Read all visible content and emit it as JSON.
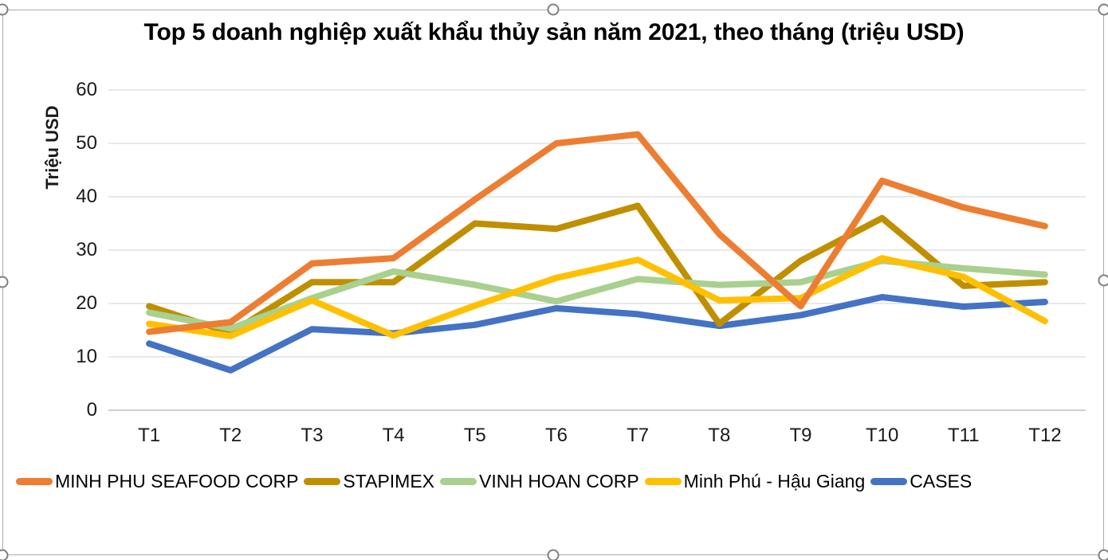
{
  "chart_data": {
    "type": "line",
    "title": "Top 5 doanh nghiệp xuất khẩu thủy sản năm 2021, theo tháng (triệu USD)",
    "ylabel": "Triệu USD",
    "xlabel": "",
    "categories": [
      "T1",
      "T2",
      "T3",
      "T4",
      "T5",
      "T6",
      "T7",
      "T8",
      "T9",
      "T10",
      "T11",
      "T12"
    ],
    "yticks": [
      0,
      10,
      20,
      30,
      40,
      50,
      60
    ],
    "ylim": [
      0,
      60
    ],
    "grid": true,
    "legend_position": "bottom",
    "series": [
      {
        "name": "MINH PHU SEAFOOD CORP",
        "color": "#ED7D31",
        "values": [
          14.7,
          16.5,
          27.5,
          28.5,
          39.5,
          50,
          51.7,
          33,
          19.5,
          43,
          38,
          34.5
        ]
      },
      {
        "name": "STAPIMEX",
        "color": "#BF8F00",
        "values": [
          19.5,
          14.5,
          24,
          24,
          35,
          34,
          38.3,
          16.2,
          28,
          36,
          23.3,
          24
        ]
      },
      {
        "name": "VINH HOAN CORP",
        "color": "#A9D08E",
        "values": [
          18.3,
          15.3,
          21,
          26,
          23.5,
          20.4,
          24.6,
          23.5,
          24,
          28,
          26.6,
          25.4
        ]
      },
      {
        "name": "Minh Phú - Hậu Giang",
        "color": "#FFC000",
        "values": [
          16.2,
          13.9,
          20.6,
          14,
          19.6,
          24.8,
          28.2,
          20.6,
          21,
          28.5,
          25,
          16.7
        ]
      },
      {
        "name": "CASES",
        "color": "#4472C4",
        "values": [
          12.5,
          7.5,
          15.2,
          14.4,
          16,
          19.1,
          18,
          15.8,
          17.8,
          21.2,
          19.4,
          20.3
        ]
      }
    ]
  }
}
